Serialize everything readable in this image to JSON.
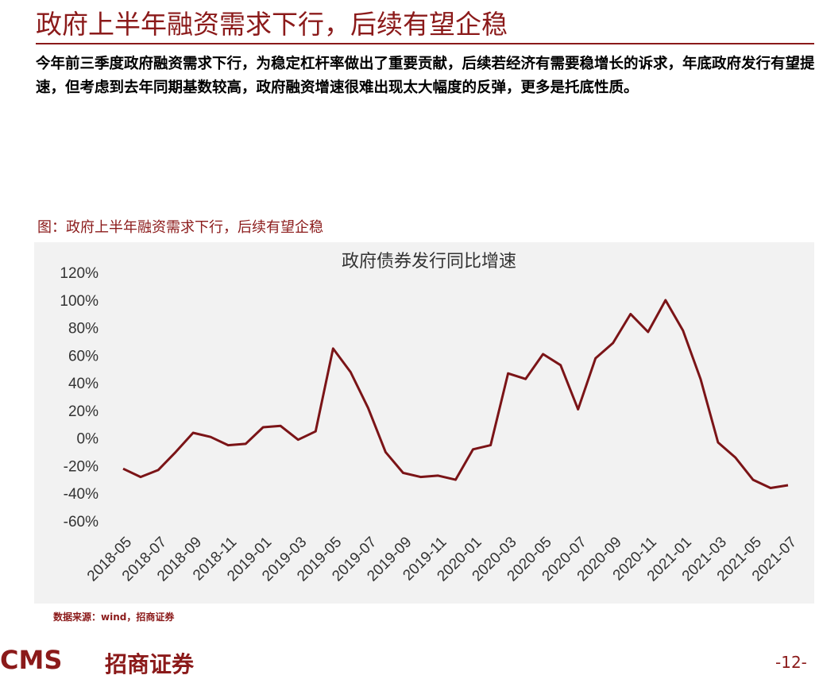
{
  "header": {
    "title": "政府上半年融资需求下行，后续有望企稳"
  },
  "body": {
    "text": "今年前三季度政府融资需求下行，为稳定杠杆率做出了重要贡献，后续若经济有需要稳增长的诉求，年底政府发行有望提速，但考虑到去年同期基数较高，政府融资增速很难出现太大幅度的反弹，更多是托底性质。"
  },
  "figure": {
    "caption": "图：政府上半年融资需求下行，后续有望企稳",
    "source": "数据来源：wind，招商证券"
  },
  "chart_data": {
    "type": "line",
    "title": "政府债券发行同比增速",
    "categories": [
      "2018-05",
      null,
      "2018-07",
      null,
      "2018-09",
      null,
      "2018-11",
      null,
      "2019-01",
      null,
      "2019-03",
      null,
      "2019-05",
      null,
      "2019-07",
      null,
      "2019-09",
      null,
      "2019-11",
      null,
      "2020-01",
      null,
      "2020-03",
      null,
      "2020-05",
      null,
      "2020-07",
      null,
      "2020-09",
      null,
      "2020-11",
      null,
      "2021-01",
      null,
      "2021-03",
      null,
      "2021-05",
      null,
      "2021-07"
    ],
    "values": [
      -21,
      -27,
      -22,
      -9,
      5,
      2,
      -4,
      -3,
      9,
      10,
      0,
      6,
      66,
      49,
      23,
      -9,
      -24,
      -27,
      -26,
      -29,
      -7,
      -4,
      48,
      44,
      62,
      54,
      22,
      59,
      70,
      91,
      78,
      101,
      79,
      44,
      -2,
      -13,
      -29,
      -35,
      -33
    ],
    "color": "#7b1417",
    "ylim": [
      -60,
      120
    ],
    "yticks": [
      {
        "value": -60,
        "label": "-60%"
      },
      {
        "value": -40,
        "label": "-40%"
      },
      {
        "value": -20,
        "label": "-20%"
      },
      {
        "value": 0,
        "label": "0%"
      },
      {
        "value": 20,
        "label": "20%"
      },
      {
        "value": 40,
        "label": "40%"
      },
      {
        "value": 60,
        "label": "60%"
      },
      {
        "value": 80,
        "label": "80%"
      },
      {
        "value": 100,
        "label": "100%"
      },
      {
        "value": 120,
        "label": "120%"
      }
    ],
    "grid": false
  },
  "footer": {
    "logo": "CMS",
    "brand": "招商证券",
    "page": "-12-"
  }
}
